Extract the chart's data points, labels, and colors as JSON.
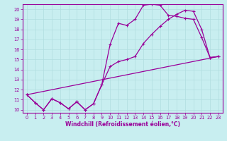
{
  "xlabel": "Windchill (Refroidissement éolien,°C)",
  "bg_color": "#c8eef0",
  "line_color": "#990099",
  "grid_color": "#b0dde0",
  "xlim": [
    -0.5,
    23.5
  ],
  "ylim": [
    9.7,
    20.5
  ],
  "yticks": [
    10,
    11,
    12,
    13,
    14,
    15,
    16,
    17,
    18,
    19,
    20
  ],
  "xticks": [
    0,
    1,
    2,
    3,
    4,
    5,
    6,
    7,
    8,
    9,
    10,
    11,
    12,
    13,
    14,
    15,
    16,
    17,
    18,
    19,
    20,
    21,
    22,
    23
  ],
  "line1_x": [
    0,
    1,
    2,
    3,
    4,
    5,
    6,
    7,
    8,
    9,
    10,
    11,
    12,
    13,
    14,
    15,
    16,
    17,
    18,
    19,
    20,
    21,
    22,
    23
  ],
  "line1_y": [
    11.5,
    10.7,
    10.0,
    11.1,
    10.7,
    10.1,
    10.8,
    10.0,
    10.6,
    12.5,
    16.5,
    18.6,
    18.4,
    19.0,
    20.4,
    20.5,
    20.4,
    19.4,
    19.3,
    19.1,
    19.0,
    17.2,
    15.2,
    15.3
  ],
  "line2_x": [
    0,
    1,
    2,
    3,
    4,
    5,
    6,
    7,
    8,
    9,
    10,
    11,
    12,
    13,
    14,
    15,
    16,
    17,
    18,
    19,
    20,
    21,
    22,
    23
  ],
  "line2_y": [
    11.5,
    10.7,
    10.0,
    11.1,
    10.7,
    10.1,
    10.8,
    10.0,
    10.6,
    12.5,
    14.3,
    14.8,
    15.0,
    15.3,
    16.6,
    17.5,
    18.3,
    19.0,
    19.5,
    19.9,
    19.8,
    18.0,
    15.2,
    15.3
  ],
  "line3_x": [
    0,
    23
  ],
  "line3_y": [
    11.5,
    15.3
  ]
}
